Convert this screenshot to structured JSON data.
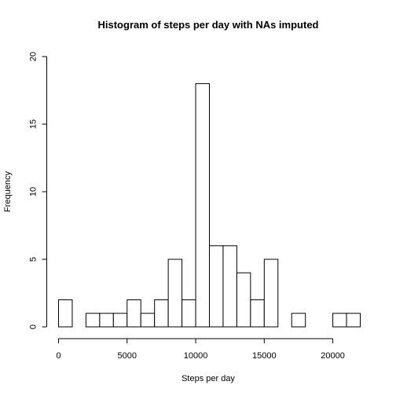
{
  "chart_data": {
    "type": "bar",
    "title": "Histogram of steps per day with NAs imputed",
    "xlabel": "Steps per day",
    "ylabel": "Frequency",
    "bin_width": 1000,
    "bins_start": [
      0,
      1000,
      2000,
      3000,
      4000,
      5000,
      6000,
      7000,
      8000,
      9000,
      10000,
      11000,
      12000,
      13000,
      14000,
      15000,
      16000,
      17000,
      18000,
      19000,
      20000,
      21000
    ],
    "values": [
      2,
      0,
      1,
      1,
      1,
      2,
      1,
      2,
      5,
      2,
      18,
      6,
      6,
      4,
      2,
      5,
      0,
      1,
      0,
      0,
      1,
      1
    ],
    "xlim": [
      0,
      22000
    ],
    "ylim": [
      0,
      20
    ],
    "x_ticks": [
      0,
      5000,
      10000,
      15000,
      20000
    ],
    "x_tick_labels": [
      "0",
      "5000",
      "10000",
      "15000",
      "20000"
    ],
    "y_ticks": [
      0,
      5,
      10,
      15,
      20
    ],
    "y_tick_labels": [
      "0",
      "5",
      "10",
      "15",
      "20"
    ],
    "grid": false,
    "colors": {
      "bar_fill": "#ffffff",
      "bar_stroke": "#000000"
    }
  }
}
